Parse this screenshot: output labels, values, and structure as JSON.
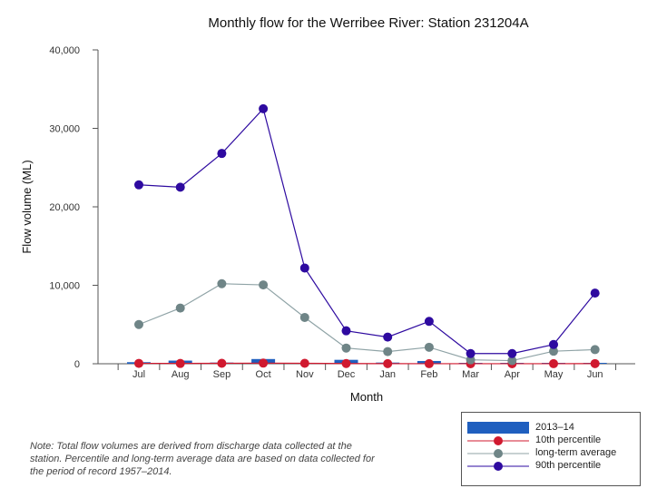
{
  "chart_data": {
    "type": "line",
    "title": "Monthly flow for the Werribee River: Station 231204A",
    "xlabel": "Month",
    "ylabel": "Flow volume (ML)",
    "categories": [
      "Jul",
      "Aug",
      "Sep",
      "Oct",
      "Nov",
      "Dec",
      "Jan",
      "Feb",
      "Mar",
      "Apr",
      "May",
      "Jun"
    ],
    "ylim": [
      0,
      40000
    ],
    "yticks": [
      0,
      10000,
      20000,
      30000,
      40000
    ],
    "ytick_labels": [
      "0",
      "10,000",
      "20,000",
      "30,000",
      "40,000"
    ],
    "grid": false,
    "legend_position": "bottom-right",
    "series": [
      {
        "name": "2013–14",
        "kind": "bar",
        "color": "#1f5fbf",
        "values": [
          200,
          400,
          150,
          600,
          100,
          500,
          150,
          350,
          50,
          20,
          30,
          100
        ]
      },
      {
        "name": "10th percentile",
        "kind": "line",
        "color": "#d0192f",
        "values": [
          50,
          40,
          60,
          80,
          60,
          30,
          15,
          10,
          5,
          5,
          10,
          20
        ]
      },
      {
        "name": "long-term average",
        "kind": "line",
        "color": "#6f8587",
        "line_color": "#8fa3a6",
        "values": [
          5000,
          7100,
          10200,
          10050,
          5900,
          2000,
          1550,
          2100,
          500,
          400,
          1600,
          1800
        ]
      },
      {
        "name": "90th percentile",
        "kind": "line",
        "color": "#2e0aa0",
        "values": [
          22800,
          22500,
          26800,
          32500,
          12200,
          4200,
          3400,
          5400,
          1300,
          1300,
          2450,
          9000
        ]
      }
    ]
  },
  "note": "Note: Total flow volumes are derived from discharge data collected at the station. Percentile and long-term average data are based on data collected for the period of record 1957–2014."
}
